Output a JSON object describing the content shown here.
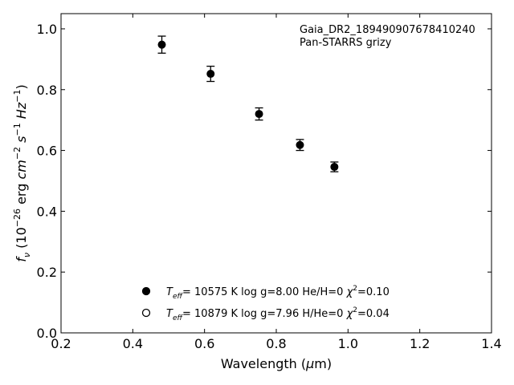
{
  "chart_data": {
    "type": "scatter",
    "annotation": [
      "Gaia_DR2_189490907678410240",
      "Pan-STARRS grizy"
    ],
    "xlabel": {
      "main": "Wavelength (",
      "mu": "μ",
      "unit": "m)"
    },
    "ylabel": "f_ν (10^-26 erg cm^-2 s^-1 Hz^-1)",
    "xlim": [
      0.2,
      1.4
    ],
    "ylim": [
      0.0,
      1.05
    ],
    "x_ticks": [
      0.2,
      0.4,
      0.6,
      0.8,
      1.0,
      1.2,
      1.4
    ],
    "x_tick_labels": [
      "0.2",
      "0.4",
      "0.6",
      "0.8",
      "1.0",
      "1.2",
      "1.4"
    ],
    "y_ticks": [
      0.0,
      0.2,
      0.4,
      0.6,
      0.8,
      1.0
    ],
    "y_tick_labels": [
      "0.0",
      "0.2",
      "0.4",
      "0.6",
      "0.8",
      "1.0"
    ],
    "series": [
      {
        "marker": "filled-circle",
        "x": [
          0.481,
          0.617,
          0.752,
          0.866,
          0.962
        ],
        "y": [
          0.948,
          0.852,
          0.72,
          0.618,
          0.546
        ],
        "yerr": [
          0.028,
          0.025,
          0.02,
          0.018,
          0.016
        ]
      }
    ],
    "legend": [
      {
        "marker": "filled-circle",
        "teff": "= 10575 K",
        "rest": "log g=8.00  He/H=0",
        "chi2": "=0.10"
      },
      {
        "marker": "open-circle",
        "teff": "= 10879 K",
        "rest": "log g=7.96  H/He=0",
        "chi2": "=0.04"
      }
    ],
    "legend_position": "lower-center",
    "grid": false
  }
}
